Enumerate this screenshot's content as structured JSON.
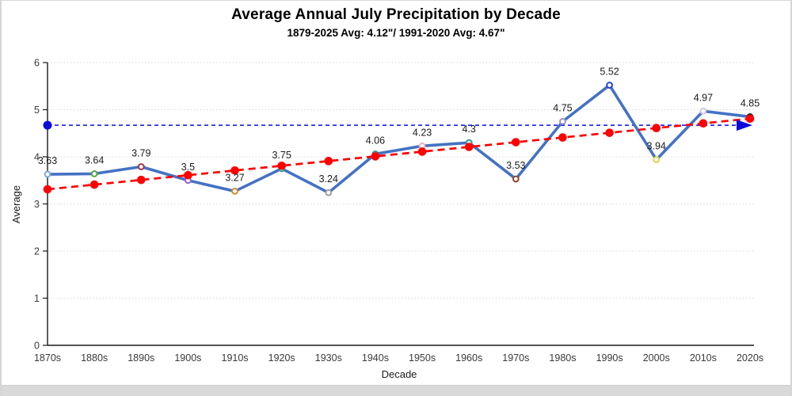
{
  "title": "Average Annual July Precipitation by Decade",
  "subtitle": "1879-2025 Avg: 4.12\"/ 1991-2020 Avg: 4.67\"",
  "chart_data": {
    "type": "line",
    "title": "Average Annual July Precipitation by Decade",
    "subtitle": "1879-2025 Avg: 4.12\"/ 1991-2020 Avg: 4.67\"",
    "xlabel": "Decade",
    "ylabel": "Average",
    "ylim": [
      0,
      6
    ],
    "yticks": [
      0,
      1,
      2,
      3,
      4,
      5,
      6
    ],
    "grid": "horizontal-dotted",
    "legend": "none",
    "categories": [
      "1870s",
      "1880s",
      "1890s",
      "1900s",
      "1910s",
      "1920s",
      "1930s",
      "1940s",
      "1950s",
      "1960s",
      "1970s",
      "1980s",
      "1990s",
      "2000s",
      "2010s",
      "2020s"
    ],
    "values": [
      3.63,
      3.64,
      3.79,
      3.5,
      3.27,
      3.75,
      3.24,
      4.06,
      4.23,
      4.3,
      3.53,
      4.75,
      5.52,
      3.94,
      4.97,
      4.85
    ],
    "data_labels": [
      "3.63",
      "3.64",
      "3.79",
      "3.5",
      "3.27",
      "3.75",
      "3.24",
      "4.06",
      "4.23",
      "4.3",
      "3.53",
      "4.75",
      "5.52",
      "3.94",
      "4.97",
      "4.85"
    ],
    "line_color": "#4472C4",
    "marker_colors": [
      "#7FA7DE",
      "#58A63E",
      "#A43546",
      "#9966CC",
      "#DD8A2E",
      "#2E9B8F",
      "#9E9E9E",
      "#2E9B8F",
      "#F2AEBB",
      "#2F9E8E",
      "#8F4A2B",
      "#9D8EC7",
      "#2742D6",
      "#DCD84A",
      "#CBC6E4",
      "#1A1A1A"
    ],
    "trendline": {
      "type": "linear",
      "color": "#FF0000",
      "dash": true,
      "start_value": 3.31,
      "end_value": 4.81,
      "dots_per_category": true
    },
    "reference_line": {
      "value": 4.67,
      "color": "#0B0BE0",
      "dash": true,
      "start_marker": "dot",
      "end_marker": "arrow"
    },
    "colors": {
      "grid": "#D9D9D9",
      "axis": "#1a1a1a",
      "tick_label": "#3a3a3a",
      "value_label": "#1a1a1a"
    }
  }
}
